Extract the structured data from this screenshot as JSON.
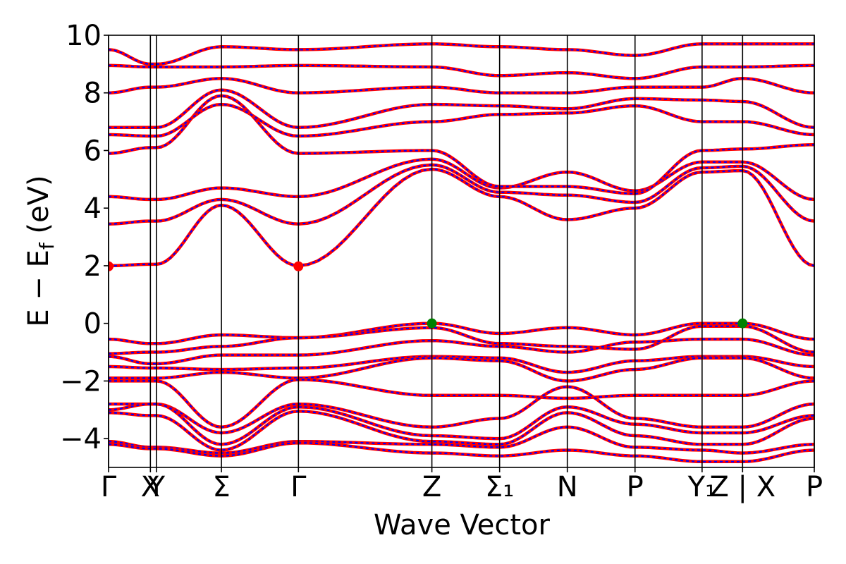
{
  "chart_data": {
    "type": "line",
    "title": "",
    "xlabel": "Wave Vector",
    "ylabel": "E − E_f (eV)",
    "ylabel_main": "E − E",
    "ylabel_sub": "f",
    "ylabel_unit": " (eV)",
    "ylim": [
      -5,
      10
    ],
    "yticks": [
      -4,
      -2,
      0,
      2,
      4,
      6,
      8,
      10
    ],
    "ytick_labels": [
      "−4",
      "−2",
      "0",
      "2",
      "4",
      "6",
      "8",
      "10"
    ],
    "kpath_range": [
      0,
      10.63
    ],
    "kpoints": [
      {
        "label": "Γ",
        "x": 0.0
      },
      {
        "label": "X",
        "x": 0.63
      },
      {
        "label": "Y",
        "x": 0.72
      },
      {
        "label": "Σ",
        "x": 1.7
      },
      {
        "label": "Γ",
        "x": 2.86
      },
      {
        "label": "Z",
        "x": 4.87
      },
      {
        "label": "Σ₁",
        "x": 5.89
      },
      {
        "label": "N",
        "x": 6.91
      },
      {
        "label": "P",
        "x": 7.93
      },
      {
        "label": "Y₁",
        "x": 8.94
      },
      {
        "label": "Z | X",
        "x": 9.55
      },
      {
        "label": "P",
        "x": 10.63
      }
    ],
    "series_styles": [
      {
        "color": "#ff0000",
        "style": "solid"
      },
      {
        "color": "#0000ff",
        "style": "dashed"
      }
    ],
    "markers": [
      {
        "kind": "CBM",
        "color": "#ff0000",
        "x": 0.0,
        "y": 1.98
      },
      {
        "kind": "CBM",
        "color": "#ff0000",
        "x": 2.86,
        "y": 1.98
      },
      {
        "kind": "VBM",
        "color": "#008000",
        "x": 4.87,
        "y": 0.0
      },
      {
        "kind": "VBM",
        "color": "#008000",
        "x": 9.55,
        "y": 0.0
      }
    ],
    "bands": [
      [
        2.0,
        2.05,
        2.05,
        4.1,
        2.0,
        5.35,
        4.4,
        3.6,
        4.0,
        5.25,
        5.3,
        2.0,
        4.0
      ],
      [
        3.45,
        3.55,
        3.55,
        4.3,
        3.45,
        5.5,
        4.55,
        4.45,
        4.2,
        5.4,
        5.45,
        3.55,
        4.25
      ],
      [
        4.4,
        4.3,
        4.3,
        4.7,
        4.4,
        5.7,
        4.7,
        5.25,
        4.6,
        5.6,
        5.6,
        4.3,
        4.65
      ],
      [
        5.9,
        6.1,
        6.1,
        7.9,
        5.9,
        6.0,
        4.75,
        4.75,
        4.5,
        6.0,
        6.05,
        6.2,
        7.25
      ],
      [
        6.55,
        6.5,
        6.5,
        7.6,
        6.5,
        7.0,
        7.25,
        7.3,
        7.55,
        7.0,
        7.0,
        6.55,
        7.5
      ],
      [
        6.8,
        6.8,
        6.8,
        8.1,
        6.8,
        7.6,
        7.55,
        7.45,
        7.8,
        7.75,
        7.7,
        6.8,
        7.8
      ],
      [
        8.0,
        8.2,
        8.2,
        8.5,
        8.0,
        8.2,
        8.0,
        8.0,
        8.2,
        8.2,
        8.5,
        8.0,
        8.45
      ],
      [
        8.95,
        8.9,
        8.9,
        8.9,
        8.95,
        8.9,
        8.6,
        8.7,
        8.5,
        8.9,
        8.9,
        8.95,
        9.0
      ],
      [
        9.5,
        9.0,
        9.0,
        9.6,
        9.5,
        9.7,
        9.6,
        9.5,
        9.3,
        9.7,
        9.7,
        9.7,
        9.9
      ],
      [
        -0.55,
        -0.7,
        -0.7,
        -0.4,
        -0.5,
        0.0,
        -0.35,
        -0.15,
        -0.4,
        0.0,
        0.0,
        -0.55,
        -0.5
      ],
      [
        -1.05,
        -1.0,
        -1.0,
        -0.8,
        -0.5,
        -0.15,
        -0.7,
        -0.8,
        -0.9,
        -0.1,
        -0.1,
        -1.0,
        -0.8
      ],
      [
        -1.15,
        -1.4,
        -1.4,
        -1.1,
        -1.1,
        -0.6,
        -0.8,
        -1.0,
        -0.65,
        -0.55,
        -0.55,
        -1.1,
        -1.05
      ],
      [
        -1.5,
        -1.55,
        -1.55,
        -1.6,
        -1.55,
        -1.15,
        -1.2,
        -1.7,
        -1.3,
        -1.15,
        -1.15,
        -1.5,
        -1.85
      ],
      [
        -1.9,
        -1.9,
        -1.9,
        -1.7,
        -1.9,
        -1.2,
        -1.3,
        -2.0,
        -1.6,
        -1.2,
        -1.2,
        -1.9,
        -1.9
      ],
      [
        -2.0,
        -2.0,
        -2.0,
        -3.6,
        -1.95,
        -2.5,
        -2.5,
        -2.6,
        -2.5,
        -2.5,
        -2.5,
        -2.0,
        -2.0
      ],
      [
        -2.8,
        -2.8,
        -2.8,
        -3.8,
        -2.8,
        -3.6,
        -3.3,
        -2.2,
        -3.3,
        -3.6,
        -3.6,
        -2.8,
        -3.3
      ],
      [
        -3.0,
        -2.8,
        -2.8,
        -4.2,
        -2.9,
        -3.9,
        -4.0,
        -2.9,
        -3.5,
        -3.8,
        -3.8,
        -3.2,
        -3.6
      ],
      [
        -3.1,
        -3.2,
        -3.2,
        -4.4,
        -3.05,
        -4.1,
        -4.2,
        -3.1,
        -3.9,
        -4.2,
        -4.2,
        -3.3,
        -4.1
      ],
      [
        -4.1,
        -4.3,
        -4.3,
        -4.5,
        -4.1,
        -4.2,
        -4.3,
        -3.6,
        -4.3,
        -4.4,
        -4.5,
        -4.2,
        -4.6
      ],
      [
        -4.2,
        -4.35,
        -4.35,
        -4.6,
        -4.15,
        -4.5,
        -4.6,
        -4.4,
        -4.6,
        -4.8,
        -4.8,
        -4.4,
        -4.8
      ]
    ]
  }
}
